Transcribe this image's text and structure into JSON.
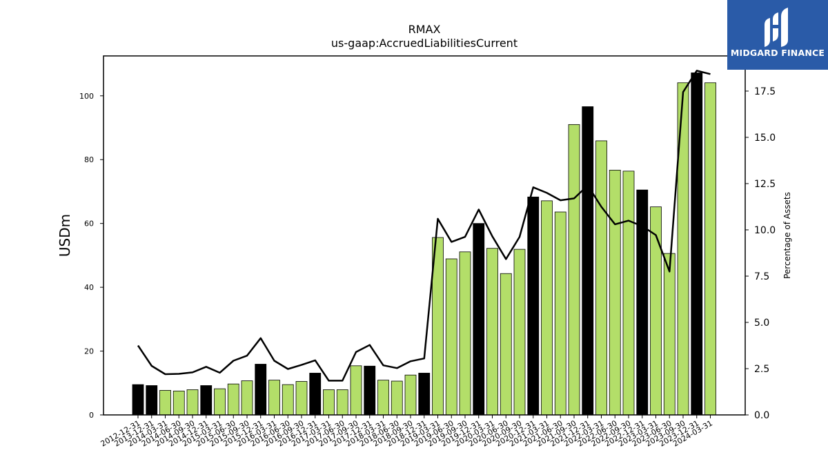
{
  "logo": {
    "text": "MIDGARD FINANCE"
  },
  "colors": {
    "quarter_bar": "#b3de69",
    "year_end_bar": "#000000",
    "line": "#000000",
    "logo_bg": "#2a5ba8"
  },
  "chart_data": {
    "type": "bar",
    "title": "RMAX",
    "subtitle": "us-gaap:AccruedLiabilitiesCurrent",
    "ylabel": "USDm",
    "y2label": "Percentage of Assets",
    "ylim": [
      0,
      112.5
    ],
    "y2lim": [
      0,
      19.4
    ],
    "yticks": [
      0,
      20,
      40,
      60,
      80,
      100
    ],
    "y2ticks": [
      0.0,
      2.5,
      5.0,
      7.5,
      10.0,
      12.5,
      15.0,
      17.5
    ],
    "y2tick_labels": [
      "0.0",
      "2.5",
      "5.0",
      "7.5",
      "10.0",
      "12.5",
      "15.0",
      "17.5"
    ],
    "categories": [
      "2012-12-31",
      "2013-12-31",
      "2014-03-31",
      "2014-06-30",
      "2014-09-30",
      "2014-12-31",
      "2015-03-31",
      "2015-06-30",
      "2015-09-30",
      "2015-12-31",
      "2016-03-31",
      "2016-06-30",
      "2016-09-30",
      "2016-12-31",
      "2017-03-31",
      "2017-06-30",
      "2017-09-30",
      "2017-12-31",
      "2018-03-31",
      "2018-06-30",
      "2018-09-30",
      "2018-12-31",
      "2019-03-31",
      "2019-06-30",
      "2019-09-30",
      "2019-12-31",
      "2020-03-31",
      "2020-06-30",
      "2020-09-30",
      "2020-12-31",
      "2021-03-31",
      "2021-06-30",
      "2021-09-30",
      "2021-12-31",
      "2022-03-31",
      "2022-06-30",
      "2022-09-30",
      "2022-12-31",
      "2023-03-31",
      "2023-06-30",
      "2023-09-30",
      "2023-12-31",
      "2024-03-31"
    ],
    "series": [
      {
        "values": [
          9.5,
          9.2,
          7.7,
          7.5,
          7.9,
          9.2,
          8.2,
          9.7,
          10.7,
          15.9,
          10.9,
          9.5,
          10.5,
          13.1,
          7.9,
          7.9,
          15.4,
          15.3,
          10.9,
          10.6,
          12.5,
          13.1,
          55.6,
          48.9,
          51.1,
          60.0,
          52.2,
          44.3,
          51.9,
          68.3,
          67.1,
          63.6,
          91.0,
          96.6,
          85.9,
          76.7,
          76.4,
          70.5,
          65.2,
          50.6,
          104.1,
          107.2,
          104.1
        ],
        "year_end": [
          true,
          true,
          false,
          false,
          false,
          true,
          false,
          false,
          false,
          true,
          false,
          false,
          false,
          true,
          false,
          false,
          false,
          true,
          false,
          false,
          false,
          true,
          false,
          false,
          false,
          true,
          false,
          false,
          false,
          true,
          false,
          false,
          false,
          true,
          false,
          false,
          false,
          true,
          false,
          false,
          false,
          true,
          false
        ]
      },
      {
        "axis": "right",
        "values": [
          3.75,
          2.65,
          2.2,
          2.22,
          2.3,
          2.6,
          2.28,
          2.93,
          3.2,
          4.15,
          2.93,
          2.48,
          2.7,
          2.95,
          1.85,
          1.85,
          3.4,
          3.78,
          2.68,
          2.53,
          2.9,
          3.05,
          10.6,
          9.35,
          9.62,
          11.1,
          9.65,
          8.42,
          9.62,
          12.3,
          12.0,
          11.6,
          11.7,
          12.4,
          11.25,
          10.3,
          10.5,
          10.2,
          9.72,
          7.75,
          17.45,
          18.6,
          18.42
        ]
      }
    ]
  }
}
